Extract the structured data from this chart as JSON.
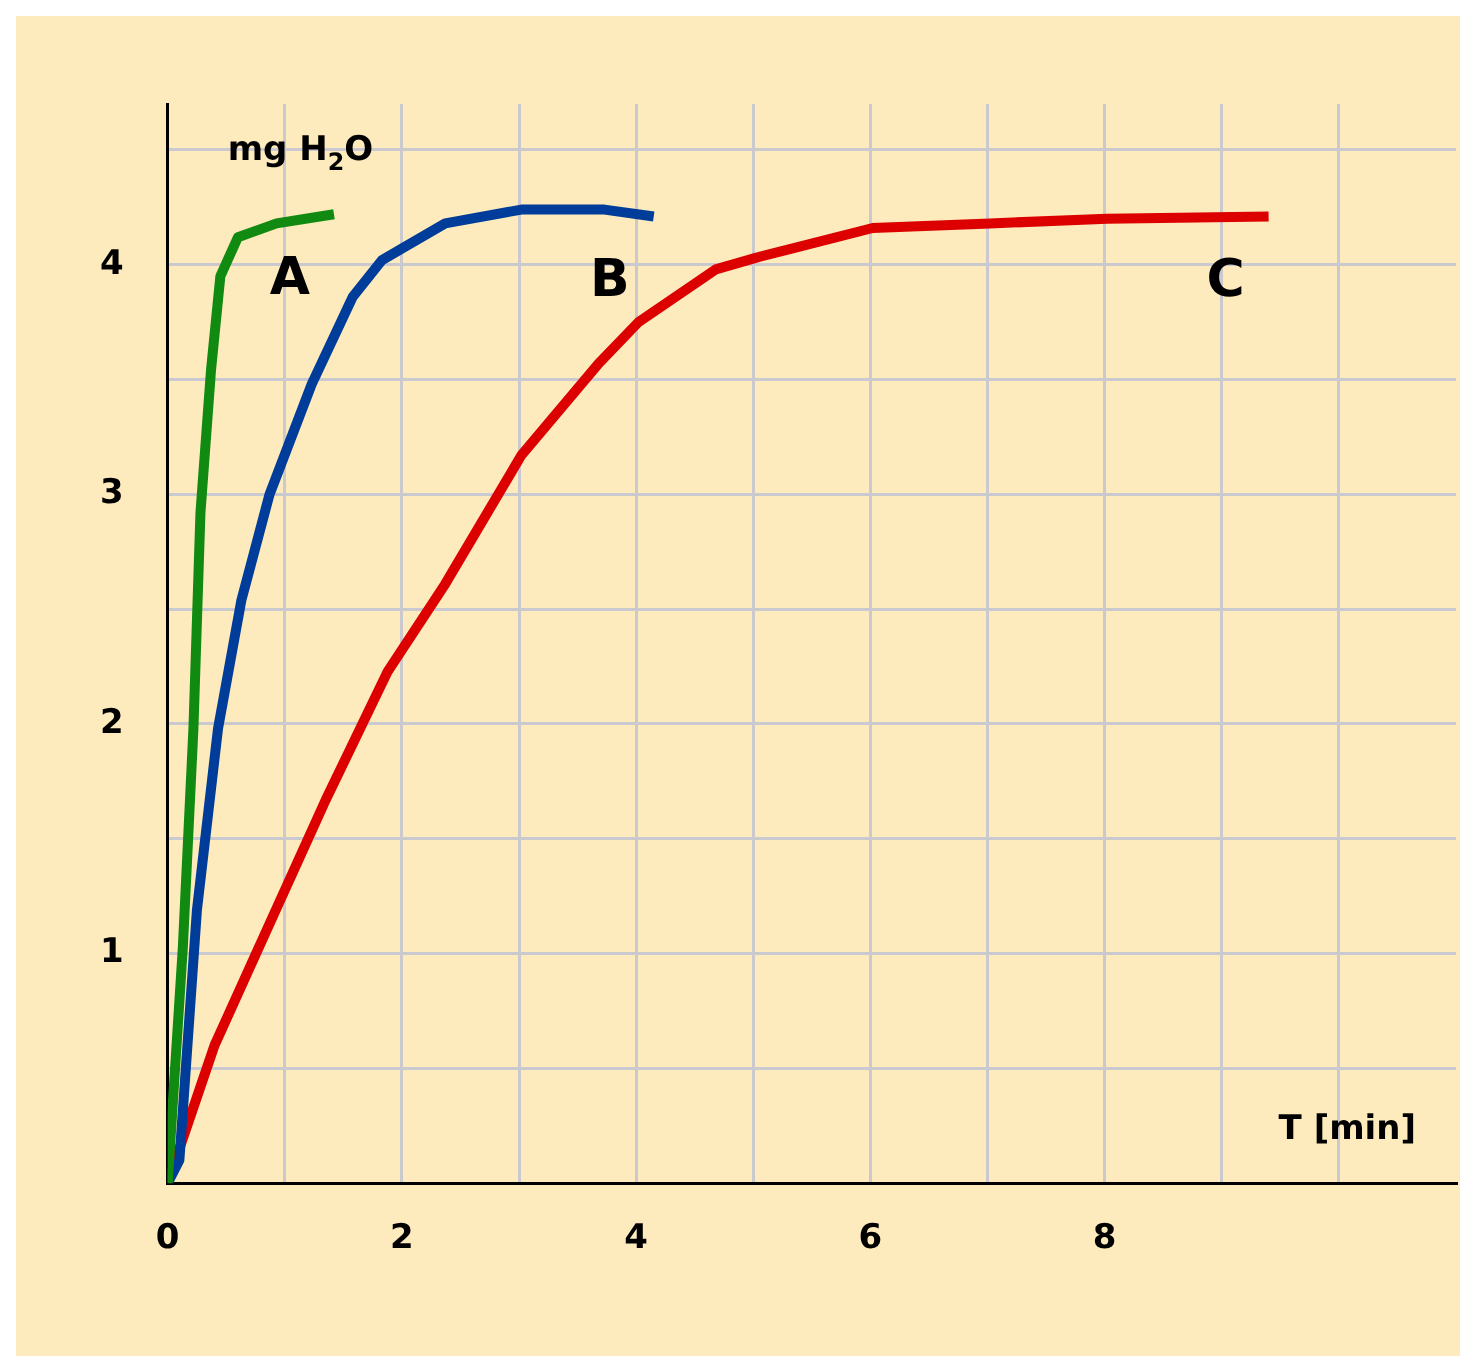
{
  "chart_data": {
    "type": "line",
    "xlabel": "T [min]",
    "ylabel": "mg H$_{2}$O",
    "xlim": [
      0,
      11
    ],
    "ylim": [
      0,
      4.7
    ],
    "xticks": [
      0,
      {
        "value": 1,
        "label": null
      },
      2,
      {
        "value": 3,
        "label": null
      },
      4,
      {
        "value": 5,
        "label": null
      },
      6,
      {
        "value": 7,
        "label": null
      },
      8,
      {
        "value": 9,
        "label": null
      },
      {
        "value": 10,
        "label": null
      }
    ],
    "yticks": [
      {
        "value": 0.5,
        "label": null
      },
      1,
      {
        "value": 1.5,
        "label": null
      },
      2,
      {
        "value": 2.5,
        "label": null
      },
      3,
      {
        "value": 3.5,
        "label": null
      },
      4,
      {
        "value": 4.5,
        "label": null
      }
    ],
    "grid": true,
    "legend": false,
    "marker": "none",
    "line_style": "solid",
    "series": [
      {
        "name": "A",
        "color": "#108a10",
        "x": [
          0,
          0.13,
          0.22,
          0.28,
          0.37,
          0.45,
          0.6,
          0.93,
          1.42
        ],
        "values": [
          0,
          1.03,
          1.98,
          2.92,
          3.54,
          3.95,
          4.12,
          4.18,
          4.22
        ]
      },
      {
        "name": "B",
        "color": "#003c99",
        "x": [
          0,
          0.1,
          0.25,
          0.43,
          0.63,
          0.87,
          1.23,
          1.58,
          1.83,
          2.37,
          3.02,
          3.73,
          4.15
        ],
        "values": [
          0,
          0.1,
          1.19,
          1.98,
          2.54,
          3.0,
          3.48,
          3.86,
          4.02,
          4.18,
          4.24,
          4.24,
          4.21
        ]
      },
      {
        "name": "C",
        "color": "#dd0000",
        "x": [
          0,
          0.4,
          0.87,
          1.35,
          1.88,
          2.37,
          3.02,
          3.68,
          4.02,
          4.68,
          5.02,
          6.02,
          7.02,
          8.02,
          9.4
        ],
        "values": [
          0,
          0.6,
          1.13,
          1.67,
          2.23,
          2.61,
          3.17,
          3.57,
          3.75,
          3.98,
          4.03,
          4.16,
          4.18,
          4.2,
          4.21
        ]
      }
    ]
  }
}
